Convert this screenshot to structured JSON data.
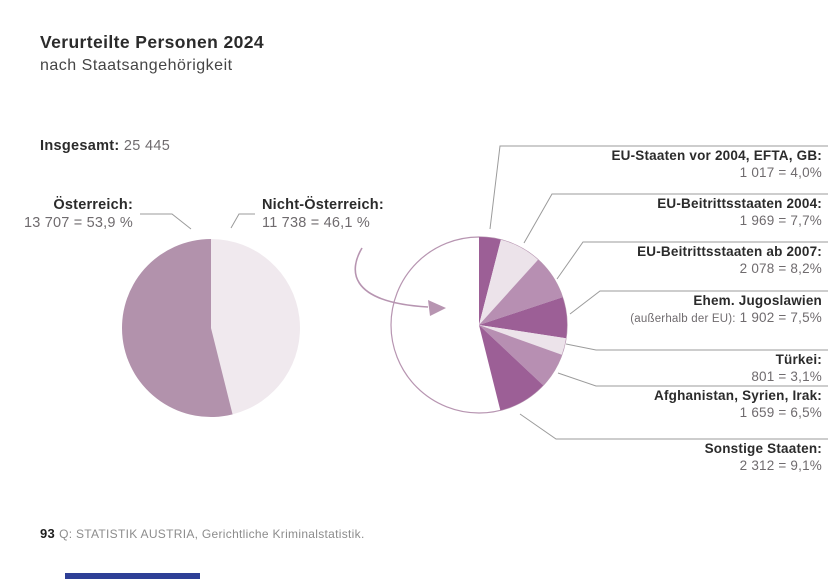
{
  "title": "Verurteilte Personen 2024",
  "subtitle": "nach Staatsangehörigkeit",
  "total": {
    "label": "Insgesamt:",
    "value": "25 445"
  },
  "footer": {
    "page_number": "93",
    "source": "Q: STATISTIK AUSTRIA, Gerichtliche Kriminalstatistik."
  },
  "colors": {
    "dark_purple": "#9c5f96",
    "medium_mauve": "#b78fb2",
    "light_pink": "#ece3ea",
    "left_dark": "#b292ac",
    "left_light": "#f0e9ee",
    "outline_mauve": "#b795b1",
    "leader_gray": "#9b9b9b",
    "accent_blue": "#2e3f96"
  },
  "chart_data": [
    {
      "type": "pie",
      "title": "Verurteilte Personen 2024 nach Staatsangehörigkeit",
      "total": 25445,
      "start_deg": 0,
      "draw_order": [
        1,
        0
      ],
      "slices": [
        {
          "label": "Österreich:",
          "count": 13707,
          "pct": 53.9,
          "display": "13 707 = 53,9 %",
          "color": "#b292ac"
        },
        {
          "label": "Nicht-Österreich:",
          "count": 11738,
          "pct": 46.1,
          "display": "11 738 = 46,1 %",
          "color": "#f0e9ee"
        }
      ]
    },
    {
      "type": "pie",
      "title": "Nicht-Österreich nach Staatengruppen",
      "total": 11738,
      "start_deg": 0,
      "remainder": {
        "pct": 53.9,
        "color": "#ffffff",
        "stroke": "#b795b1"
      },
      "slices": [
        {
          "label": "EU-Staaten vor 2004, EFTA, GB:",
          "count": 1017,
          "pct": 4.0,
          "display": "1 017 = 4,0%",
          "color": "#9c5f96"
        },
        {
          "label": "EU-Beitrittsstaaten 2004:",
          "count": 1969,
          "pct": 7.7,
          "display": "1 969 = 7,7%",
          "color": "#ece3ea"
        },
        {
          "label": "EU-Beitrittsstaaten ab 2007:",
          "count": 2078,
          "pct": 8.2,
          "display": "2 078 = 8,2%",
          "color": "#b78fb2"
        },
        {
          "label": "Ehem. Jugoslawien",
          "note": "(außerhalb der EU):",
          "count": 1902,
          "pct": 7.5,
          "display": "1 902 = 7,5%",
          "color": "#9c5f96"
        },
        {
          "label": "Türkei:",
          "count": 801,
          "pct": 3.1,
          "display": "801 = 3,1%",
          "color": "#ece3ea"
        },
        {
          "label": "Afghanistan, Syrien, Irak:",
          "count": 1659,
          "pct": 6.5,
          "display": "1 659 = 6,5%",
          "color": "#b78fb2"
        },
        {
          "label": "Sonstige Staaten:",
          "count": 2312,
          "pct": 9.1,
          "display": "2 312 = 9,1%",
          "color": "#9c5f96"
        }
      ]
    }
  ]
}
